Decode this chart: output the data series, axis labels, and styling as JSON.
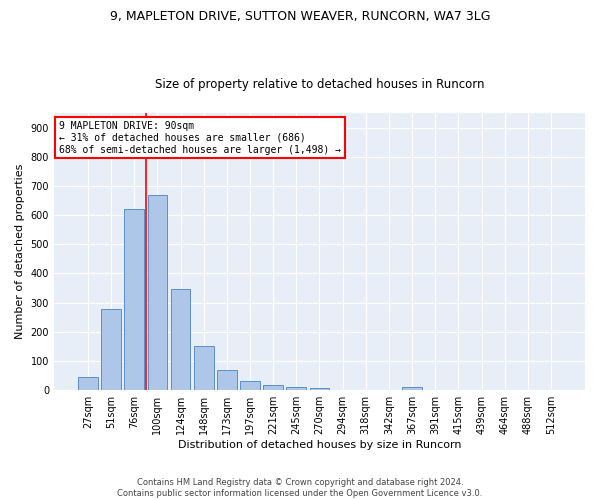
{
  "title1": "9, MAPLETON DRIVE, SUTTON WEAVER, RUNCORN, WA7 3LG",
  "title2": "Size of property relative to detached houses in Runcorn",
  "xlabel": "Distribution of detached houses by size in Runcorn",
  "ylabel": "Number of detached properties",
  "bin_labels": [
    "27sqm",
    "51sqm",
    "76sqm",
    "100sqm",
    "124sqm",
    "148sqm",
    "173sqm",
    "197sqm",
    "221sqm",
    "245sqm",
    "270sqm",
    "294sqm",
    "318sqm",
    "342sqm",
    "367sqm",
    "391sqm",
    "415sqm",
    "439sqm",
    "464sqm",
    "488sqm",
    "512sqm"
  ],
  "bar_values": [
    46,
    280,
    620,
    670,
    347,
    150,
    68,
    32,
    17,
    11,
    9,
    0,
    0,
    0,
    10,
    0,
    0,
    0,
    0,
    0,
    0
  ],
  "bar_color": "#aec6e8",
  "bar_edge_color": "#5b8fc9",
  "vline_x": 2.5,
  "annotation_text": "9 MAPLETON DRIVE: 90sqm\n← 31% of detached houses are smaller (686)\n68% of semi-detached houses are larger (1,498) →",
  "annotation_box_color": "white",
  "annotation_box_edge_color": "red",
  "vline_color": "red",
  "ylim": [
    0,
    950
  ],
  "yticks": [
    0,
    100,
    200,
    300,
    400,
    500,
    600,
    700,
    800,
    900
  ],
  "background_color": "#e8eef7",
  "footnote": "Contains HM Land Registry data © Crown copyright and database right 2024.\nContains public sector information licensed under the Open Government Licence v3.0.",
  "title1_fontsize": 9,
  "title2_fontsize": 8.5,
  "xlabel_fontsize": 8,
  "ylabel_fontsize": 8,
  "annot_fontsize": 7,
  "tick_fontsize": 7
}
